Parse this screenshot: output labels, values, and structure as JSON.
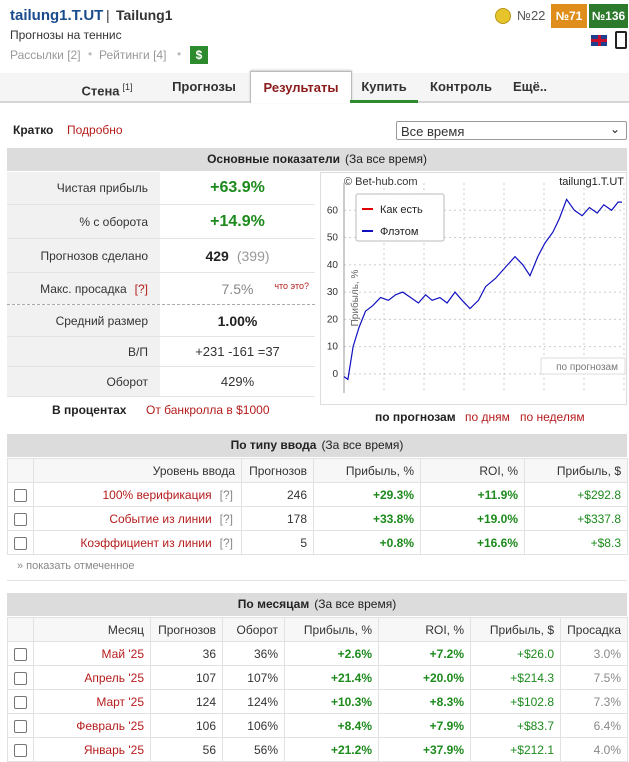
{
  "header": {
    "user": "tailung1.T.UT",
    "separator": "|",
    "name": "Tailung1",
    "subtitle": "Прогнозы на теннис",
    "links": [
      "Рассылки [2]",
      "Рейтинги [4]"
    ],
    "dollar": "$",
    "rank": "№22",
    "badges": [
      "№71",
      "№136"
    ]
  },
  "tabs": [
    {
      "label": "Стена",
      "sup": "[1]"
    },
    {
      "label": "Прогнозы"
    },
    {
      "label": "Результаты"
    },
    {
      "label": "Купить"
    },
    {
      "label": "Контроль"
    },
    {
      "label": "Ещё.."
    }
  ],
  "view": {
    "short": "Кратко",
    "detailed": "Подробно",
    "period": "Все время"
  },
  "summary": {
    "title": "Основные показатели",
    "period": "(За все время)",
    "rows": [
      {
        "label": "Чистая прибыль",
        "value": "+63.9%"
      },
      {
        "label": "% с оборота",
        "value": "+14.9%"
      },
      {
        "label": "Прогнозов сделано",
        "value": "429",
        "extra": "(399)"
      },
      {
        "label": "Макс. просадка",
        "help": "[?]",
        "value": "7.5%",
        "extra": "что это?"
      },
      {
        "label": "Средний размер",
        "value": "1.00%"
      },
      {
        "label": "В/П",
        "value": "+231 -161 =37"
      },
      {
        "label": "Оборот",
        "value": "429%"
      }
    ],
    "mode": "В процентах",
    "bankroll": "От банкролла в $1000",
    "chart_tabs": [
      "по прогнозам",
      "по дням",
      "по неделям"
    ]
  },
  "chart_data": {
    "type": "line",
    "title": "tailung1.T.UT",
    "source": "© Bet-hub.com",
    "ylabel": "Прибыль, %",
    "xlabel": "по прогнозам",
    "xlim": [
      0,
      429
    ],
    "ylim": [
      -7,
      70
    ],
    "yticks": [
      0,
      10,
      20,
      30,
      40,
      50,
      60
    ],
    "legend": [
      {
        "name": "Как есть",
        "color": "#e00000"
      },
      {
        "name": "Флэтом",
        "color": "#1010c0"
      }
    ],
    "series": [
      {
        "name": "Флэтом",
        "color": "#1010c0",
        "x": [
          0,
          6,
          14,
          23,
          33,
          44,
          56,
          68,
          79,
          90,
          102,
          114,
          125,
          135,
          147,
          158,
          170,
          181,
          193,
          206,
          217,
          232,
          247,
          262,
          274,
          285,
          297,
          308,
          320,
          330,
          341,
          353,
          365,
          376,
          388,
          398,
          410,
          420,
          426
        ],
        "values": [
          -1,
          -2,
          10,
          17,
          23,
          25,
          28,
          27,
          29,
          30,
          28,
          26,
          29,
          27,
          28,
          26,
          30,
          27,
          24,
          27,
          32,
          35,
          39,
          43,
          40,
          36,
          43,
          48,
          52,
          57,
          64,
          60,
          58,
          61,
          59,
          62,
          60,
          63,
          63
        ]
      }
    ]
  },
  "by_type": {
    "title": "По типу ввода",
    "period": "(За все время)",
    "headers": [
      "Уровень ввода",
      "Прогнозов",
      "Прибыль, %",
      "ROI, %",
      "Прибыль, $"
    ],
    "help": "[?]",
    "rows": [
      [
        "100% верификация",
        "246",
        "+29.3%",
        "+11.9%",
        "+$292.8"
      ],
      [
        "Событие из линии",
        "178",
        "+33.8%",
        "+19.0%",
        "+$337.8"
      ],
      [
        "Коэффициент из линии",
        "5",
        "+0.8%",
        "+16.6%",
        "+$8.3"
      ]
    ],
    "show": "» показать отмеченное"
  },
  "by_month": {
    "title": "По месяцам",
    "period": "(За все время)",
    "headers": [
      "Месяц",
      "Прогнозов",
      "Оборот",
      "Прибыль, %",
      "ROI, %",
      "Прибыль, $",
      "Просадка"
    ],
    "rows": [
      [
        "Май '25",
        "36",
        "36%",
        "+2.6%",
        "+7.2%",
        "+$26.0",
        "3.0%"
      ],
      [
        "Апрель '25",
        "107",
        "107%",
        "+21.4%",
        "+20.0%",
        "+$214.3",
        "7.5%"
      ],
      [
        "Март '25",
        "124",
        "124%",
        "+10.3%",
        "+8.3%",
        "+$102.8",
        "7.3%"
      ],
      [
        "Февраль '25",
        "106",
        "106%",
        "+8.4%",
        "+7.9%",
        "+$83.7",
        "6.4%"
      ],
      [
        "Январь '25",
        "56",
        "56%",
        "+21.2%",
        "+37.9%",
        "+$212.1",
        "4.0%"
      ]
    ]
  }
}
